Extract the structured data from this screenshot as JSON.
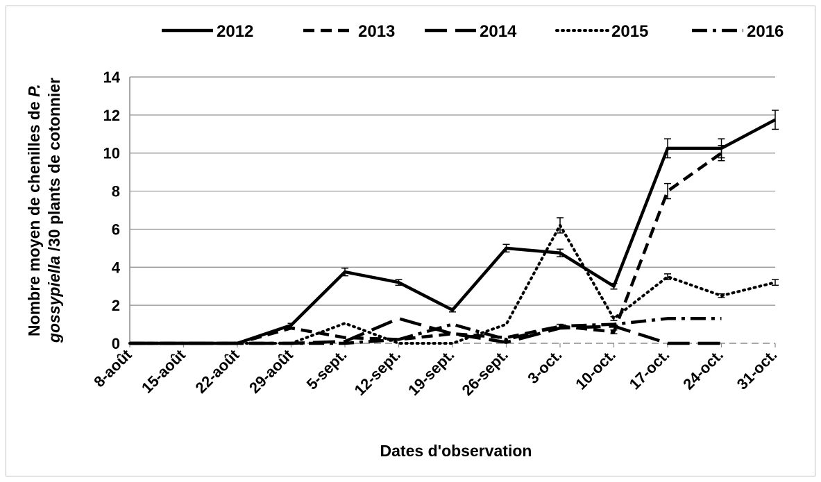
{
  "chart_data": {
    "type": "line",
    "title": "",
    "xlabel": "Dates d'observation",
    "ylabel": {
      "line1_prefix": "Nombre moyen de chenilles de ",
      "line1_italic": "P.",
      "line2_italic": "gossypiella",
      "line2_suffix": " /30 plants de cotonnier"
    },
    "ylim": [
      0,
      14
    ],
    "yticks": [
      "0",
      "2",
      "4",
      "6",
      "8",
      "10",
      "12",
      "14"
    ],
    "grid": "horizontal",
    "legend_position": "top",
    "categories": [
      "8-août",
      "15-août",
      "22-août",
      "29-août",
      "5-sept.",
      "12-sept.",
      "19-sept.",
      "26-sept.",
      "3-oct.",
      "10-oct.",
      "17-oct.",
      "24-oct.",
      "31-oct."
    ],
    "series": [
      {
        "name": "2012",
        "style": "solid",
        "color": "#000000",
        "values": [
          0,
          0,
          0,
          0.95,
          3.75,
          3.2,
          1.75,
          5.0,
          4.75,
          3.0,
          10.25,
          10.25,
          11.75
        ],
        "errors": [
          0,
          0,
          0,
          0.1,
          0.2,
          0.15,
          0.1,
          0.2,
          0.2,
          0.15,
          0.5,
          0.5,
          0.5
        ]
      },
      {
        "name": "2013",
        "style": "dashed",
        "color": "#000000",
        "values": [
          0,
          0,
          0,
          0.8,
          0.3,
          0.2,
          0.5,
          0.3,
          0.9,
          0.6,
          8.0,
          10.0,
          null
        ],
        "errors": [
          0,
          0,
          0,
          0,
          0,
          0,
          0,
          0,
          0.1,
          0.1,
          0.4,
          0.4,
          0
        ]
      },
      {
        "name": "2014",
        "style": "longdash",
        "color": "#000000",
        "values": [
          0,
          0,
          0,
          0,
          0.1,
          1.3,
          0.5,
          0.05,
          0.8,
          0.9,
          0,
          0,
          null
        ],
        "errors": [
          0,
          0,
          0,
          0,
          0,
          0,
          0,
          0,
          0,
          0,
          0,
          0,
          0
        ]
      },
      {
        "name": "2015",
        "style": "dotted",
        "color": "#000000",
        "values": [
          0,
          0,
          0,
          0,
          1.05,
          0,
          0,
          1.0,
          6.2,
          1.3,
          3.5,
          2.5,
          3.2
        ],
        "errors": [
          0,
          0,
          0,
          0,
          0,
          0,
          0,
          0,
          0.4,
          0.1,
          0.15,
          0.1,
          0.15
        ]
      },
      {
        "name": "2016",
        "style": "dashdot",
        "color": "#000000",
        "values": [
          0,
          0,
          0,
          0,
          0,
          0.2,
          1.0,
          0.2,
          0.9,
          1.0,
          1.3,
          1.3,
          null
        ],
        "errors": [
          0,
          0,
          0,
          0,
          0,
          0,
          0,
          0,
          0,
          0,
          0,
          0,
          0
        ]
      }
    ]
  }
}
